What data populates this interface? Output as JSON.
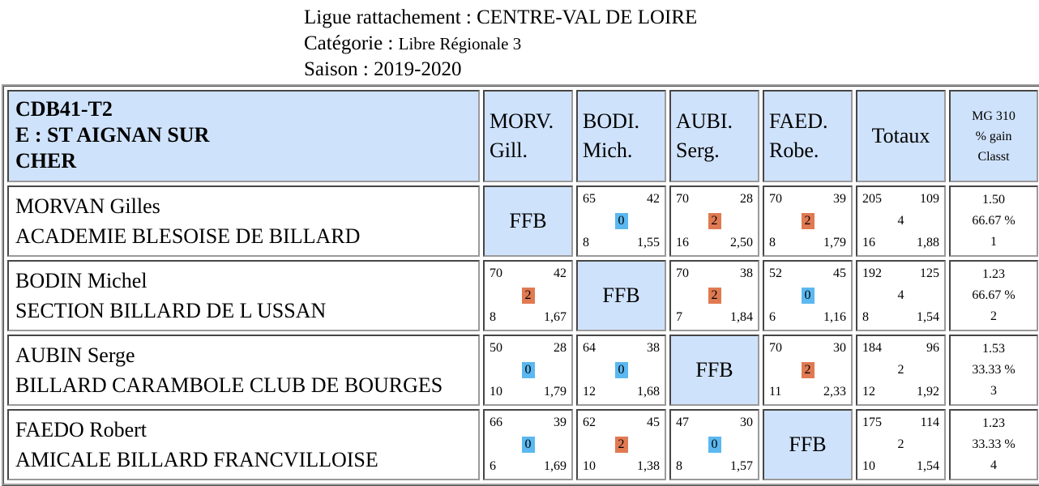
{
  "header": {
    "ligue_label": "Ligue rattachement : ",
    "ligue_value": "CENTRE-VAL DE LOIRE",
    "categorie_label": "Catégorie : ",
    "categorie_value": "Libre Régionale 3",
    "saison_label": "Saison : ",
    "saison_value": "2019-2020"
  },
  "table": {
    "team_line1": "CDB41-T2",
    "team_line2": "E : ST AIGNAN SUR",
    "team_line3": "CHER",
    "columns": [
      {
        "l1": "MORV.",
        "l2": "Gill."
      },
      {
        "l1": "BODI.",
        "l2": "Mich."
      },
      {
        "l1": "AUBI.",
        "l2": "Serg."
      },
      {
        "l1": "FAED.",
        "l2": "Robe."
      }
    ],
    "totaux_label": "Totaux",
    "mg_l1": "MG 310",
    "mg_l2": "% gain",
    "mg_l3": "Classt",
    "ffb_label": "FFB",
    "rows": [
      {
        "name": "MORVAN Gilles",
        "club": "ACADEMIE BLESOISE DE BILLARD",
        "cells": [
          null,
          {
            "tl": "65",
            "tr": "42",
            "pts": "0",
            "bl": "8",
            "br": "1,55"
          },
          {
            "tl": "70",
            "tr": "28",
            "pts": "2",
            "bl": "16",
            "br": "2,50"
          },
          {
            "tl": "70",
            "tr": "39",
            "pts": "2",
            "bl": "8",
            "br": "1,79"
          }
        ],
        "tot": {
          "tl": "205",
          "tr": "109",
          "mid": "4",
          "bl": "16",
          "br": "1,88"
        },
        "mg": {
          "avg": "1.50",
          "pct": "66.67 %",
          "rank": "1"
        }
      },
      {
        "name": "BODIN Michel",
        "club": "SECTION BILLARD DE L USSAN",
        "cells": [
          {
            "tl": "70",
            "tr": "42",
            "pts": "2",
            "bl": "8",
            "br": "1,67"
          },
          null,
          {
            "tl": "70",
            "tr": "38",
            "pts": "2",
            "bl": "7",
            "br": "1,84"
          },
          {
            "tl": "52",
            "tr": "45",
            "pts": "0",
            "bl": "6",
            "br": "1,16"
          }
        ],
        "tot": {
          "tl": "192",
          "tr": "125",
          "mid": "4",
          "bl": "8",
          "br": "1,54"
        },
        "mg": {
          "avg": "1.23",
          "pct": "66.67 %",
          "rank": "2"
        }
      },
      {
        "name": "AUBIN Serge",
        "club": "BILLARD CARAMBOLE CLUB DE BOURGES",
        "cells": [
          {
            "tl": "50",
            "tr": "28",
            "pts": "0",
            "bl": "10",
            "br": "1,79"
          },
          {
            "tl": "64",
            "tr": "38",
            "pts": "0",
            "bl": "12",
            "br": "1,68"
          },
          null,
          {
            "tl": "70",
            "tr": "30",
            "pts": "2",
            "bl": "11",
            "br": "2,33"
          }
        ],
        "tot": {
          "tl": "184",
          "tr": "96",
          "mid": "2",
          "bl": "12",
          "br": "1,92"
        },
        "mg": {
          "avg": "1.53",
          "pct": "33.33 %",
          "rank": "3"
        }
      },
      {
        "name": "FAEDO Robert",
        "club": "AMICALE BILLARD FRANCVILLOISE",
        "cells": [
          {
            "tl": "66",
            "tr": "39",
            "pts": "0",
            "bl": "6",
            "br": "1,69"
          },
          {
            "tl": "62",
            "tr": "45",
            "pts": "2",
            "bl": "10",
            "br": "1,38"
          },
          {
            "tl": "47",
            "tr": "30",
            "pts": "0",
            "bl": "8",
            "br": "1,57"
          },
          null
        ],
        "tot": {
          "tl": "175",
          "tr": "114",
          "mid": "2",
          "bl": "10",
          "br": "1,54"
        },
        "mg": {
          "avg": "1.23",
          "pct": "33.33 %",
          "rank": "4"
        }
      }
    ]
  },
  "colors": {
    "header_bg": "#cfe2fb",
    "badge_zero": "#5bb8f0",
    "badge_two": "#e07a52"
  }
}
